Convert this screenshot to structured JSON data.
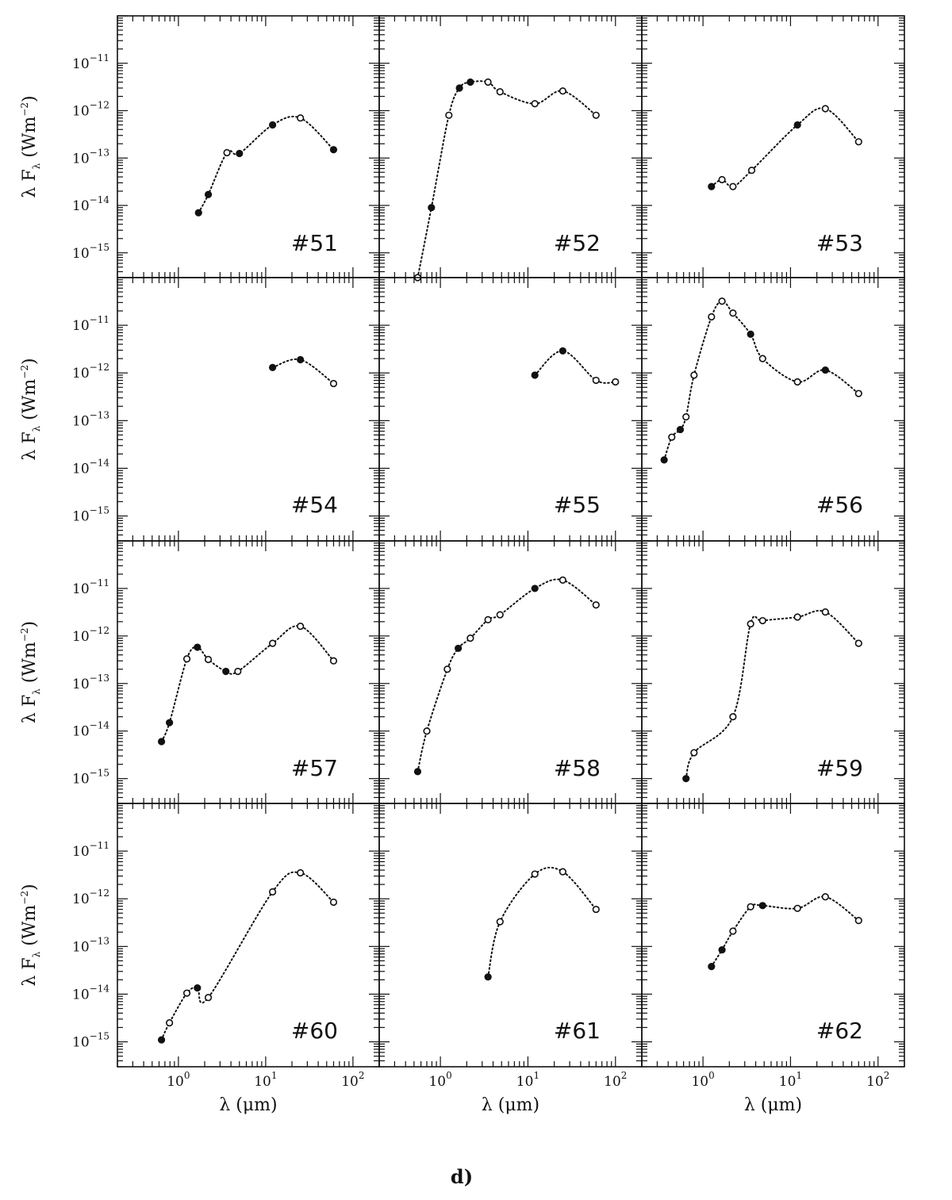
{
  "chart_data": {
    "type": "scatter",
    "x_scale": "log",
    "y_scale": "log",
    "xlim": [
      0.2,
      200
    ],
    "ylim": [
      3e-16,
      1e-10
    ],
    "grid": false,
    "legend": "none",
    "xlabel": "λ (μm)",
    "ylabel": "λ F_λ (Wm^-2)",
    "x_ticks": [
      "10^0",
      "10^1",
      "10^2"
    ],
    "y_ticks": [
      "10^-15",
      "10^-14",
      "10^-13",
      "10^-12",
      "10^-11"
    ],
    "caption": "d)",
    "colors": {
      "ink": "#111111",
      "background": "#ffffff"
    },
    "panels": [
      {
        "label": "#51",
        "points": [
          {
            "x": 1.7,
            "y": 7e-15,
            "filled": true
          },
          {
            "x": 2.2,
            "y": 1.7e-14,
            "filled": true
          },
          {
            "x": 3.6,
            "y": 1.3e-13,
            "filled": false
          },
          {
            "x": 5.0,
            "y": 1.25e-13,
            "filled": true
          },
          {
            "x": 12,
            "y": 5e-13,
            "filled": true
          },
          {
            "x": 25,
            "y": 7e-13,
            "filled": false
          },
          {
            "x": 60,
            "y": 1.5e-13,
            "filled": true
          }
        ]
      },
      {
        "label": "#52",
        "points": [
          {
            "x": 0.55,
            "y": 3e-16,
            "filled": false
          },
          {
            "x": 0.79,
            "y": 9e-15,
            "filled": true
          },
          {
            "x": 1.25,
            "y": 8e-13,
            "filled": false
          },
          {
            "x": 1.65,
            "y": 3e-12,
            "filled": true
          },
          {
            "x": 2.2,
            "y": 4e-12,
            "filled": true
          },
          {
            "x": 3.5,
            "y": 4e-12,
            "filled": false
          },
          {
            "x": 4.8,
            "y": 2.5e-12,
            "filled": false
          },
          {
            "x": 12,
            "y": 1.4e-12,
            "filled": false
          },
          {
            "x": 25,
            "y": 2.6e-12,
            "filled": false
          },
          {
            "x": 60,
            "y": 8e-13,
            "filled": false
          }
        ]
      },
      {
        "label": "#53",
        "points": [
          {
            "x": 1.25,
            "y": 2.5e-14,
            "filled": true
          },
          {
            "x": 1.65,
            "y": 3.5e-14,
            "filled": false
          },
          {
            "x": 2.2,
            "y": 2.5e-14,
            "filled": false
          },
          {
            "x": 3.6,
            "y": 5.5e-14,
            "filled": false
          },
          {
            "x": 12,
            "y": 5e-13,
            "filled": true
          },
          {
            "x": 25,
            "y": 1.1e-12,
            "filled": false
          },
          {
            "x": 60,
            "y": 2.2e-13,
            "filled": false
          }
        ]
      },
      {
        "label": "#54",
        "points": [
          {
            "x": 12,
            "y": 1.3e-12,
            "filled": true
          },
          {
            "x": 25,
            "y": 1.9e-12,
            "filled": true
          },
          {
            "x": 60,
            "y": 6e-13,
            "filled": false
          }
        ]
      },
      {
        "label": "#55",
        "points": [
          {
            "x": 12,
            "y": 9e-13,
            "filled": true
          },
          {
            "x": 25,
            "y": 2.9e-12,
            "filled": true
          },
          {
            "x": 60,
            "y": 7e-13,
            "filled": false
          },
          {
            "x": 100,
            "y": 6.5e-13,
            "filled": false
          }
        ]
      },
      {
        "label": "#56",
        "points": [
          {
            "x": 0.36,
            "y": 1.5e-14,
            "filled": true
          },
          {
            "x": 0.44,
            "y": 4.5e-14,
            "filled": false
          },
          {
            "x": 0.55,
            "y": 6.5e-14,
            "filled": true
          },
          {
            "x": 0.64,
            "y": 1.2e-13,
            "filled": false
          },
          {
            "x": 0.79,
            "y": 9e-13,
            "filled": false
          },
          {
            "x": 1.25,
            "y": 1.5e-11,
            "filled": false
          },
          {
            "x": 1.65,
            "y": 3.2e-11,
            "filled": false
          },
          {
            "x": 2.2,
            "y": 1.8e-11,
            "filled": false
          },
          {
            "x": 3.5,
            "y": 6.5e-12,
            "filled": true
          },
          {
            "x": 4.8,
            "y": 2e-12,
            "filled": false
          },
          {
            "x": 12,
            "y": 6.5e-13,
            "filled": false
          },
          {
            "x": 25,
            "y": 1.15e-12,
            "filled": true
          },
          {
            "x": 60,
            "y": 3.7e-13,
            "filled": false
          }
        ]
      },
      {
        "label": "#57",
        "points": [
          {
            "x": 0.64,
            "y": 6e-15,
            "filled": true
          },
          {
            "x": 0.79,
            "y": 1.5e-14,
            "filled": true
          },
          {
            "x": 1.25,
            "y": 3.3e-13,
            "filled": false
          },
          {
            "x": 1.65,
            "y": 5.8e-13,
            "filled": true
          },
          {
            "x": 2.2,
            "y": 3.2e-13,
            "filled": false
          },
          {
            "x": 3.5,
            "y": 1.8e-13,
            "filled": true
          },
          {
            "x": 4.8,
            "y": 1.8e-13,
            "filled": false
          },
          {
            "x": 12,
            "y": 7e-13,
            "filled": false
          },
          {
            "x": 25,
            "y": 1.6e-12,
            "filled": false
          },
          {
            "x": 60,
            "y": 3e-13,
            "filled": false
          }
        ]
      },
      {
        "label": "#58",
        "points": [
          {
            "x": 0.55,
            "y": 1.4e-15,
            "filled": true
          },
          {
            "x": 0.7,
            "y": 1e-14,
            "filled": false
          },
          {
            "x": 1.2,
            "y": 2e-13,
            "filled": false
          },
          {
            "x": 1.6,
            "y": 5.5e-13,
            "filled": true
          },
          {
            "x": 2.2,
            "y": 9e-13,
            "filled": false
          },
          {
            "x": 3.5,
            "y": 2.2e-12,
            "filled": false
          },
          {
            "x": 4.8,
            "y": 2.8e-12,
            "filled": false
          },
          {
            "x": 12,
            "y": 1e-11,
            "filled": true
          },
          {
            "x": 25,
            "y": 1.5e-11,
            "filled": false
          },
          {
            "x": 60,
            "y": 4.5e-12,
            "filled": false
          }
        ]
      },
      {
        "label": "#59",
        "points": [
          {
            "x": 0.64,
            "y": 1e-15,
            "filled": true
          },
          {
            "x": 0.79,
            "y": 3.5e-15,
            "filled": false
          },
          {
            "x": 2.2,
            "y": 2e-14,
            "filled": false
          },
          {
            "x": 3.5,
            "y": 1.8e-12,
            "filled": false
          },
          {
            "x": 4.8,
            "y": 2.1e-12,
            "filled": false
          },
          {
            "x": 12,
            "y": 2.5e-12,
            "filled": false
          },
          {
            "x": 25,
            "y": 3.2e-12,
            "filled": false
          },
          {
            "x": 60,
            "y": 7e-13,
            "filled": false
          }
        ]
      },
      {
        "label": "#60",
        "points": [
          {
            "x": 0.64,
            "y": 1.1e-15,
            "filled": true
          },
          {
            "x": 0.79,
            "y": 2.5e-15,
            "filled": false
          },
          {
            "x": 1.25,
            "y": 1.05e-14,
            "filled": false
          },
          {
            "x": 1.65,
            "y": 1.35e-14,
            "filled": true
          },
          {
            "x": 2.2,
            "y": 8.5e-15,
            "filled": false
          },
          {
            "x": 12,
            "y": 1.4e-12,
            "filled": false
          },
          {
            "x": 25,
            "y": 3.5e-12,
            "filled": false
          },
          {
            "x": 60,
            "y": 8.5e-13,
            "filled": false
          }
        ]
      },
      {
        "label": "#61",
        "points": [
          {
            "x": 3.5,
            "y": 2.3e-14,
            "filled": true
          },
          {
            "x": 4.8,
            "y": 3.3e-13,
            "filled": false
          },
          {
            "x": 12,
            "y": 3.3e-12,
            "filled": false
          },
          {
            "x": 25,
            "y": 3.7e-12,
            "filled": false
          },
          {
            "x": 60,
            "y": 6e-13,
            "filled": false
          }
        ]
      },
      {
        "label": "#62",
        "points": [
          {
            "x": 1.25,
            "y": 3.8e-14,
            "filled": true
          },
          {
            "x": 1.65,
            "y": 8.5e-14,
            "filled": true
          },
          {
            "x": 2.2,
            "y": 2.1e-13,
            "filled": false
          },
          {
            "x": 3.5,
            "y": 6.8e-13,
            "filled": false
          },
          {
            "x": 4.8,
            "y": 7.2e-13,
            "filled": true
          },
          {
            "x": 12,
            "y": 6.3e-13,
            "filled": false
          },
          {
            "x": 25,
            "y": 1.1e-12,
            "filled": false
          },
          {
            "x": 60,
            "y": 3.5e-13,
            "filled": false
          }
        ]
      }
    ]
  }
}
